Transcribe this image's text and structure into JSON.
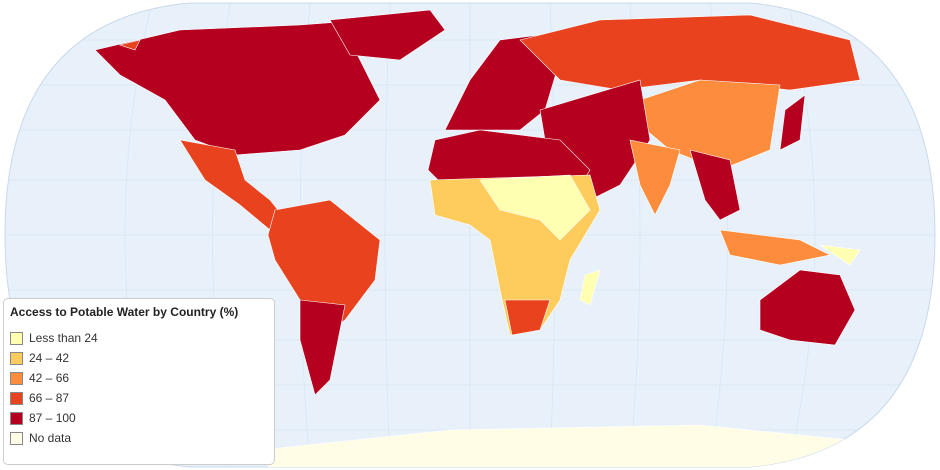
{
  "legend": {
    "title": "Access to Potable Water by Country (%)",
    "items": [
      {
        "label": "Less than 24",
        "color": "#ffffb2"
      },
      {
        "label": "24 – 42",
        "color": "#fecc5c"
      },
      {
        "label": "42 – 66",
        "color": "#fd8d3c"
      },
      {
        "label": "66 – 87",
        "color": "#e8431e"
      },
      {
        "label": "87 – 100",
        "color": "#b5001f"
      },
      {
        "label": "No data",
        "color": "#fffde6"
      }
    ]
  }
}
